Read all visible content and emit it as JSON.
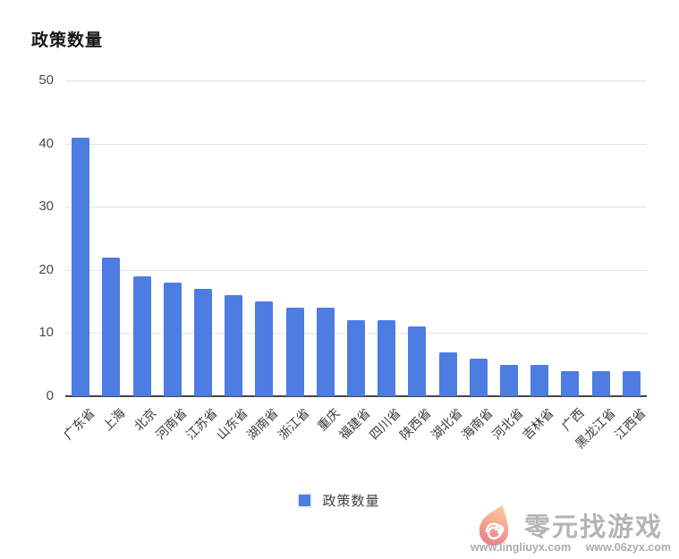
{
  "title": "政策数量",
  "chart_data": {
    "type": "bar",
    "title": "政策数量",
    "categories": [
      "广东省",
      "上海",
      "北京",
      "河南省",
      "江苏省",
      "山东省",
      "湖南省",
      "浙江省",
      "重庆",
      "福建省",
      "四川省",
      "陕西省",
      "湖北省",
      "海南省",
      "河北省",
      "吉林省",
      "广西",
      "黑龙江省",
      "江西省"
    ],
    "values": [
      41,
      22,
      19,
      18,
      17,
      16,
      15,
      14,
      14,
      12,
      12,
      11,
      7,
      6,
      5,
      5,
      4,
      4,
      4
    ],
    "xlabel": "",
    "ylabel": "",
    "ylim": [
      0,
      50
    ],
    "yticks": [
      0,
      10,
      20,
      30,
      40,
      50
    ],
    "grid": true,
    "legend_position": "bottom",
    "bar_color": "#4d7ce2"
  },
  "legend": {
    "label": "政策数量",
    "swatch_color": "#4d7ce2"
  },
  "watermark": {
    "site_name": "零元找游戏",
    "url_left": "www.lingliuyx.com",
    "url_right": "www.06zyx.com"
  },
  "colors": {
    "bar": "#4d7ce2",
    "gridline": "#e3e3e3",
    "baseline": "#454545",
    "title_text": "#161616",
    "axis_text": "#4a4a4a",
    "watermark_text": "#a8a8a8"
  }
}
